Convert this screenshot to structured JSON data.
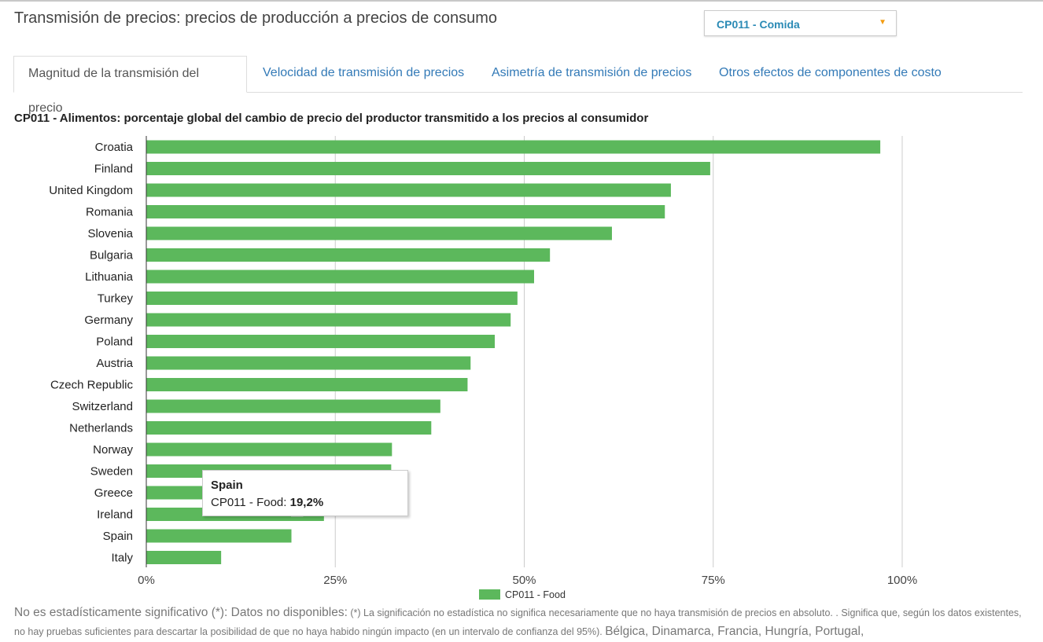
{
  "header": {
    "title": "Transmisión de precios: precios de producción a precios de consumo",
    "select_value": "CP011 - Comida",
    "select_icon": "caret-down-icon"
  },
  "tabs": [
    {
      "label": "Magnitud de la transmisión del precio",
      "active": true
    },
    {
      "label": "Velocidad de transmisión de precios",
      "active": false
    },
    {
      "label": "Asimetría de transmisión de precios",
      "active": false
    },
    {
      "label": "Otros efectos de componentes de costo",
      "active": false
    }
  ],
  "chart_data": {
    "type": "bar",
    "orientation": "horizontal",
    "title": "CP011 - Alimentos: porcentaje global del cambio de precio del productor transmitido a los precios al consumidor",
    "categories": [
      "Croatia",
      "Finland",
      "United Kingdom",
      "Romania",
      "Slovenia",
      "Bulgaria",
      "Lithuania",
      "Turkey",
      "Germany",
      "Poland",
      "Austria",
      "Czech Republic",
      "Switzerland",
      "Netherlands",
      "Norway",
      "Sweden",
      "Greece",
      "Ireland",
      "Spain",
      "Italy"
    ],
    "series": [
      {
        "name": "CP011 - Food",
        "color": "#5cb85c",
        "values": [
          97.1,
          74.6,
          69.4,
          68.6,
          61.6,
          53.4,
          51.3,
          49.1,
          48.2,
          46.1,
          42.9,
          42.5,
          38.9,
          37.7,
          32.5,
          32.4,
          28.0,
          23.5,
          19.2,
          9.9
        ]
      }
    ],
    "xlim": [
      0,
      100
    ],
    "xticks": [
      "0%",
      "25%",
      "50%",
      "75%",
      "100%"
    ],
    "grid": true,
    "legend": "bottom",
    "tooltip": {
      "title": "Spain",
      "label": "CP011 - Food:",
      "value": "19,2%"
    }
  },
  "footer": {
    "part1": "No es estadísticamente significativo (*): Datos no disponibles:",
    "part2": "(*) La significación no estadística no significa necesariamente que no haya transmisión de precios en absoluto. . Significa que, según los datos existentes, no hay pruebas suficientes para descartar la posibilidad de que no haya habido ningún impacto (en un intervalo de confianza del 95%).",
    "part3": "Bélgica, Dinamarca, Francia, Hungría, Portugal,"
  }
}
